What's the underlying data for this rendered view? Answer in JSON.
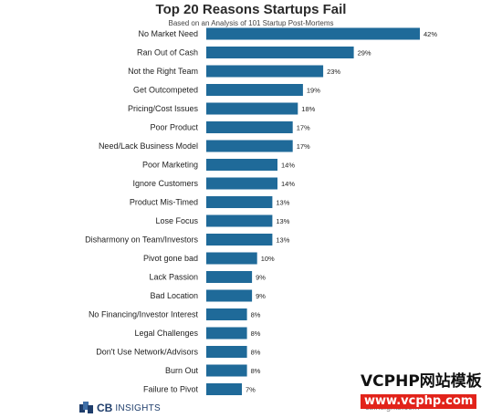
{
  "chart_data": {
    "type": "bar",
    "orientation": "horizontal",
    "title": "Top 20 Reasons Startups Fail",
    "subtitle": "Based on an Analysis of 101 Startup Post-Mortems",
    "categories": [
      "No Market Need",
      "Ran Out of Cash",
      "Not the Right Team",
      "Get Outcompeted",
      "Pricing/Cost Issues",
      "Poor Product",
      "Need/Lack Business Model",
      "Poor Marketing",
      "Ignore Customers",
      "Product Mis-Timed",
      "Lose Focus",
      "Disharmony on Team/Investors",
      "Pivot gone bad",
      "Lack Passion",
      "Bad Location",
      "No Financing/Investor Interest",
      "Legal Challenges",
      "Don't Use Network/Advisors",
      "Burn Out",
      "Failure to Pivot"
    ],
    "values": [
      42,
      29,
      23,
      19,
      18,
      17,
      17,
      14,
      14,
      13,
      13,
      13,
      10,
      9,
      9,
      8,
      8,
      8,
      8,
      7
    ],
    "value_labels": [
      "42%",
      "29%",
      "23%",
      "19%",
      "18%",
      "17%",
      "17%",
      "14%",
      "14%",
      "13%",
      "13%",
      "13%",
      "10%",
      "9%",
      "9%",
      "8%",
      "8%",
      "8%",
      "8%",
      "7%"
    ],
    "xlabel": "",
    "ylabel": "",
    "xlim": [
      0,
      42
    ],
    "grid": false,
    "bar_color": "#1f6a99"
  },
  "branding": {
    "logo_cb": "CB",
    "logo_rest": "INSIGHTS",
    "url": "cbinsights.com",
    "logo_color": "#1e3d6b"
  },
  "watermark": {
    "main": "VCPHP网站模板",
    "sub": "www.vcphp.com",
    "accent": "#e2231a"
  }
}
